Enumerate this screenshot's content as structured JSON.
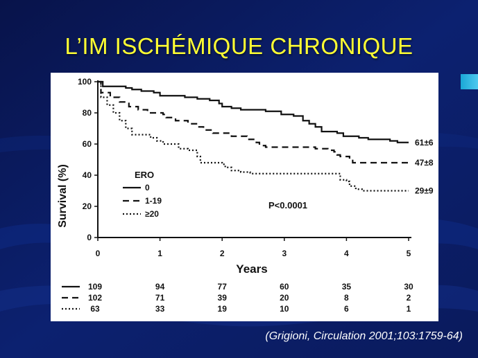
{
  "slide": {
    "title": "L’IM ISCHÉMIQUE CHRONIQUE",
    "citation": "(Grigioni, Circulation 2001;103:1759-64)",
    "background_color": "#0a1a5c",
    "title_color": "#ffff33",
    "accent_color": "#2bb5e6"
  },
  "chart_data": {
    "type": "line",
    "title": "",
    "xlabel": "Years",
    "ylabel": "Survival (%)",
    "xlim": [
      0,
      5
    ],
    "ylim": [
      0,
      100
    ],
    "xticks": [
      "0",
      "1",
      "2",
      "3",
      "4",
      "5"
    ],
    "yticks": [
      "0",
      "20",
      "40",
      "60",
      "80",
      "100"
    ],
    "grid": false,
    "legend": {
      "title": "ERO",
      "placement": "center-left",
      "entries": [
        "0",
        "1-19",
        "≥20"
      ]
    },
    "annotation": "P<0.0001",
    "series": [
      {
        "name": "0",
        "line_style": "solid",
        "end_label": "61±6",
        "points": [
          [
            0,
            100
          ],
          [
            0.08,
            97
          ],
          [
            0.45,
            96
          ],
          [
            0.55,
            95
          ],
          [
            0.7,
            94
          ],
          [
            0.9,
            93
          ],
          [
            1.0,
            91
          ],
          [
            1.4,
            90
          ],
          [
            1.6,
            89
          ],
          [
            1.8,
            88
          ],
          [
            1.95,
            86
          ],
          [
            2.0,
            84
          ],
          [
            2.15,
            83
          ],
          [
            2.3,
            82
          ],
          [
            2.7,
            81
          ],
          [
            2.95,
            79
          ],
          [
            3.15,
            78
          ],
          [
            3.3,
            75
          ],
          [
            3.4,
            73
          ],
          [
            3.5,
            71
          ],
          [
            3.6,
            68
          ],
          [
            3.85,
            67
          ],
          [
            3.95,
            65
          ],
          [
            4.2,
            64
          ],
          [
            4.35,
            63
          ],
          [
            4.7,
            62
          ],
          [
            4.82,
            61
          ],
          [
            5.0,
            61
          ]
        ]
      },
      {
        "name": "1-19",
        "line_style": "dashed",
        "end_label": "47±8",
        "points": [
          [
            0,
            100
          ],
          [
            0.05,
            93
          ],
          [
            0.2,
            90
          ],
          [
            0.35,
            87
          ],
          [
            0.5,
            84
          ],
          [
            0.65,
            82
          ],
          [
            0.8,
            80
          ],
          [
            1.05,
            79
          ],
          [
            1.1,
            77
          ],
          [
            1.25,
            75
          ],
          [
            1.45,
            73
          ],
          [
            1.6,
            71
          ],
          [
            1.7,
            69
          ],
          [
            1.85,
            67
          ],
          [
            2.15,
            65
          ],
          [
            2.4,
            63
          ],
          [
            2.55,
            61
          ],
          [
            2.6,
            59
          ],
          [
            2.7,
            58
          ],
          [
            3.5,
            57
          ],
          [
            3.7,
            56
          ],
          [
            3.8,
            55
          ],
          [
            3.85,
            53
          ],
          [
            3.9,
            52
          ],
          [
            4.0,
            52
          ],
          [
            4.05,
            50
          ],
          [
            4.1,
            48
          ],
          [
            5.0,
            48
          ]
        ]
      },
      {
        "name": "≥20",
        "line_style": "dotted",
        "end_label": "29±9",
        "points": [
          [
            0,
            100
          ],
          [
            0.05,
            90
          ],
          [
            0.15,
            85
          ],
          [
            0.25,
            80
          ],
          [
            0.35,
            75
          ],
          [
            0.45,
            70
          ],
          [
            0.55,
            66
          ],
          [
            0.85,
            64
          ],
          [
            0.95,
            62
          ],
          [
            1.05,
            60
          ],
          [
            1.3,
            57
          ],
          [
            1.45,
            56
          ],
          [
            1.6,
            52
          ],
          [
            1.65,
            48
          ],
          [
            2.0,
            47
          ],
          [
            2.05,
            45
          ],
          [
            2.15,
            43
          ],
          [
            2.25,
            43
          ],
          [
            2.3,
            42
          ],
          [
            2.45,
            41
          ],
          [
            3.85,
            41
          ],
          [
            3.9,
            37
          ],
          [
            4.0,
            36
          ],
          [
            4.05,
            33
          ],
          [
            4.15,
            31
          ],
          [
            4.25,
            30
          ],
          [
            5.0,
            30
          ]
        ]
      }
    ],
    "risk_table": {
      "years": [
        0,
        1,
        2,
        3,
        4,
        5
      ],
      "rows": [
        {
          "line_style": "solid",
          "values": [
            "109",
            "94",
            "77",
            "60",
            "35",
            "30"
          ]
        },
        {
          "line_style": "dashed",
          "values": [
            "102",
            "71",
            "39",
            "20",
            "8",
            "2"
          ]
        },
        {
          "line_style": "dotted",
          "values": [
            "63",
            "33",
            "19",
            "10",
            "6",
            "1"
          ]
        }
      ]
    }
  }
}
